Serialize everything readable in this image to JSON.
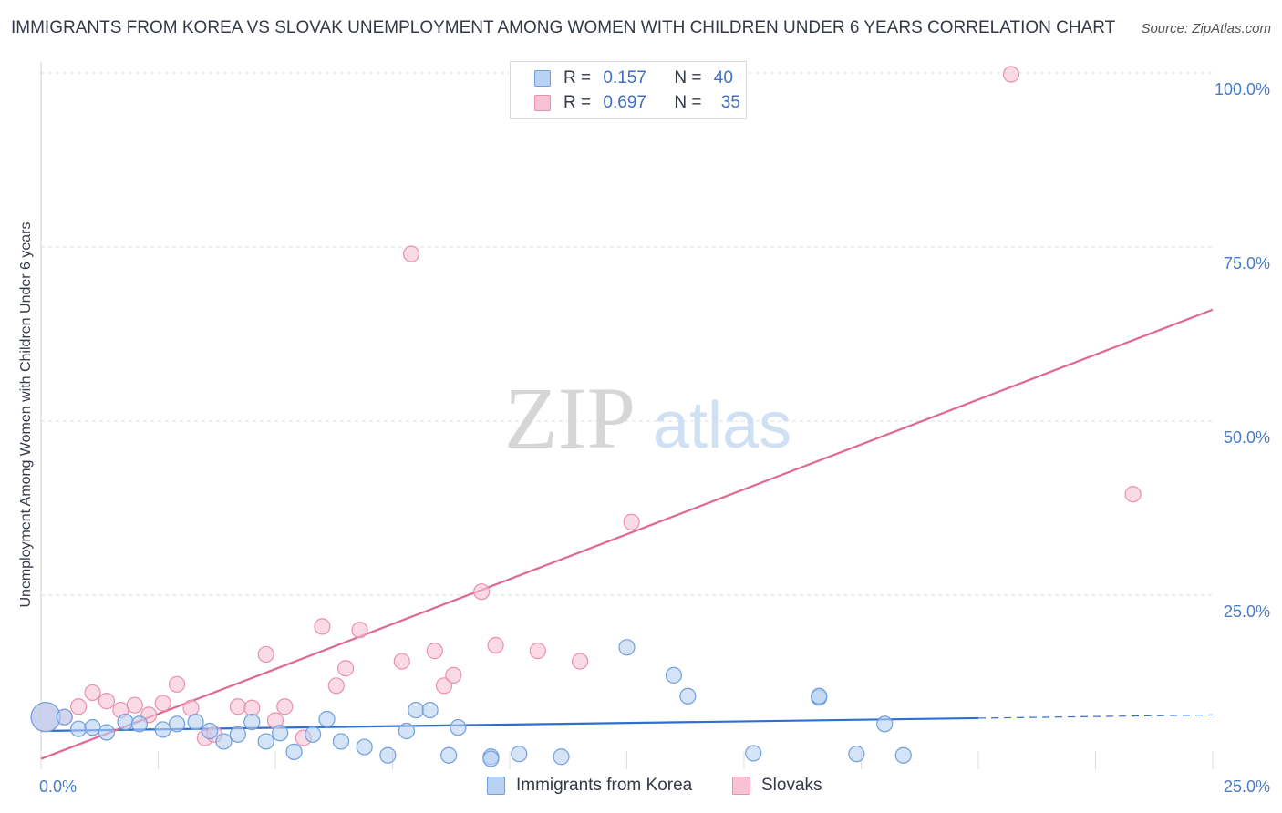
{
  "title": "IMMIGRANTS FROM KOREA VS SLOVAK UNEMPLOYMENT AMONG WOMEN WITH CHILDREN UNDER 6 YEARS CORRELATION CHART",
  "source": "Source: ZipAtlas.com",
  "watermark": {
    "zip": "ZIP",
    "atlas": "atlas"
  },
  "legend": {
    "rows": [
      {
        "r_label": "R =",
        "r_value": "0.157",
        "n_label": "N =",
        "n_value": "40"
      },
      {
        "r_label": "R =",
        "r_value": "0.697",
        "n_label": "N =",
        "n_value": "35"
      }
    ]
  },
  "colors": {
    "korea_fill": "#b9d1f2",
    "korea_stroke": "#6f9fdd",
    "korea_line": "#2f6fd0",
    "slovak_fill": "#f7c3d3",
    "slovak_stroke": "#e890ad",
    "slovak_line": "#e06890",
    "tick": "#4a7cc4",
    "grid": "#dcdcdc"
  },
  "chart_data": {
    "type": "scatter",
    "xlabel": "",
    "ylabel": "Unemployment Among Women with Children Under 6 years",
    "xlim": [
      0,
      25
    ],
    "ylim": [
      0,
      100
    ],
    "x_tick_labels": [
      "0.0%",
      "25.0%"
    ],
    "y_tick_labels": [
      "100.0%",
      "75.0%",
      "50.0%",
      "25.0%"
    ],
    "y_tick_values": [
      100,
      75,
      50,
      25
    ],
    "grid": true,
    "legend_position": "top-center",
    "series": [
      {
        "name": "Immigrants from Korea",
        "R": 0.157,
        "N": 40,
        "trend": {
          "x0": 0,
          "y0": 5.5,
          "x1": 25,
          "y1": 7.8,
          "solid_until_x": 20
        },
        "points": [
          {
            "x": 0.1,
            "y": 7.5,
            "big": true
          },
          {
            "x": 0.5,
            "y": 7.5
          },
          {
            "x": 0.8,
            "y": 5.8
          },
          {
            "x": 1.1,
            "y": 6.0
          },
          {
            "x": 1.4,
            "y": 5.3
          },
          {
            "x": 1.8,
            "y": 6.8
          },
          {
            "x": 2.1,
            "y": 6.5
          },
          {
            "x": 2.6,
            "y": 5.7
          },
          {
            "x": 2.9,
            "y": 6.5
          },
          {
            "x": 3.3,
            "y": 6.8
          },
          {
            "x": 3.6,
            "y": 5.5
          },
          {
            "x": 3.9,
            "y": 4.0
          },
          {
            "x": 4.2,
            "y": 5.0
          },
          {
            "x": 4.5,
            "y": 6.8
          },
          {
            "x": 4.8,
            "y": 4.0
          },
          {
            "x": 5.1,
            "y": 5.2
          },
          {
            "x": 5.4,
            "y": 2.5
          },
          {
            "x": 5.8,
            "y": 5.0
          },
          {
            "x": 6.1,
            "y": 7.2
          },
          {
            "x": 6.4,
            "y": 4.0
          },
          {
            "x": 6.9,
            "y": 3.2
          },
          {
            "x": 7.4,
            "y": 2.0
          },
          {
            "x": 7.8,
            "y": 5.5
          },
          {
            "x": 8.0,
            "y": 8.5
          },
          {
            "x": 8.3,
            "y": 8.5
          },
          {
            "x": 8.7,
            "y": 2.0
          },
          {
            "x": 8.9,
            "y": 6.0
          },
          {
            "x": 9.6,
            "y": 1.8
          },
          {
            "x": 9.6,
            "y": 1.5
          },
          {
            "x": 10.2,
            "y": 2.2
          },
          {
            "x": 11.1,
            "y": 1.8
          },
          {
            "x": 12.5,
            "y": 17.5
          },
          {
            "x": 13.5,
            "y": 13.5
          },
          {
            "x": 13.8,
            "y": 10.5
          },
          {
            "x": 15.2,
            "y": 2.3
          },
          {
            "x": 16.6,
            "y": 10.3
          },
          {
            "x": 16.6,
            "y": 10.5
          },
          {
            "x": 17.4,
            "y": 2.2
          },
          {
            "x": 18.0,
            "y": 6.5
          },
          {
            "x": 18.4,
            "y": 2.0
          }
        ]
      },
      {
        "name": "Slovaks",
        "R": 0.697,
        "N": 35,
        "trend": {
          "x0": 0,
          "y0": 1.5,
          "x1": 25,
          "y1": 66
        },
        "points": [
          {
            "x": 0.1,
            "y": 7.5,
            "big": true
          },
          {
            "x": 0.5,
            "y": 7.5
          },
          {
            "x": 0.8,
            "y": 9.0
          },
          {
            "x": 1.1,
            "y": 11.0
          },
          {
            "x": 1.4,
            "y": 9.8
          },
          {
            "x": 1.7,
            "y": 8.5
          },
          {
            "x": 2.0,
            "y": 9.2
          },
          {
            "x": 2.3,
            "y": 7.8
          },
          {
            "x": 2.6,
            "y": 9.5
          },
          {
            "x": 2.9,
            "y": 12.2
          },
          {
            "x": 3.2,
            "y": 8.8
          },
          {
            "x": 3.5,
            "y": 4.5
          },
          {
            "x": 3.7,
            "y": 5.0
          },
          {
            "x": 4.2,
            "y": 9.0
          },
          {
            "x": 4.5,
            "y": 8.8
          },
          {
            "x": 4.8,
            "y": 16.5
          },
          {
            "x": 5.0,
            "y": 7.0
          },
          {
            "x": 5.2,
            "y": 9.0
          },
          {
            "x": 5.6,
            "y": 4.5
          },
          {
            "x": 6.0,
            "y": 20.5
          },
          {
            "x": 6.3,
            "y": 12.0
          },
          {
            "x": 6.5,
            "y": 14.5
          },
          {
            "x": 6.8,
            "y": 20.0
          },
          {
            "x": 7.7,
            "y": 15.5
          },
          {
            "x": 7.9,
            "y": 74.0
          },
          {
            "x": 8.4,
            "y": 17.0
          },
          {
            "x": 8.6,
            "y": 12.0
          },
          {
            "x": 8.8,
            "y": 13.5
          },
          {
            "x": 9.4,
            "y": 25.5
          },
          {
            "x": 9.7,
            "y": 17.8
          },
          {
            "x": 10.6,
            "y": 17.0
          },
          {
            "x": 11.5,
            "y": 15.5
          },
          {
            "x": 12.6,
            "y": 35.5
          },
          {
            "x": 20.7,
            "y": 99.8
          },
          {
            "x": 23.3,
            "y": 39.5
          }
        ]
      }
    ]
  }
}
